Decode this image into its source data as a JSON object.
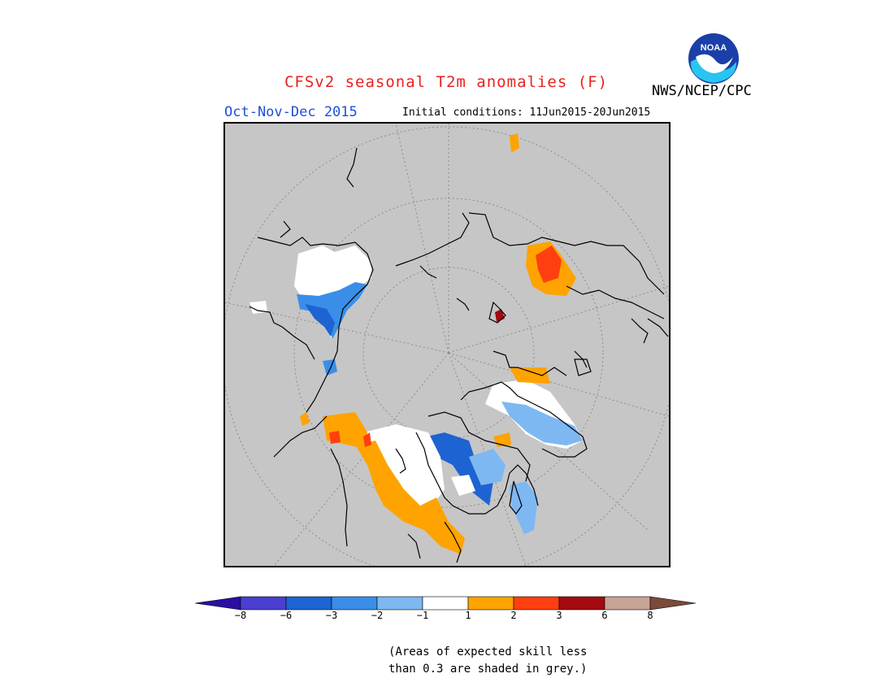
{
  "title": "CFSv2 seasonal T2m anomalies (F)",
  "season": "Oct-Nov-Dec 2015",
  "initial_conditions": "Initial conditions: 11Jun2015-20Jun2015",
  "agency": "NWS/NCEP/CPC",
  "logo_text": "NOAA",
  "colors": {
    "title": "#e8231f",
    "season": "#1f4fd8",
    "map_background": "#c6c6c6"
  },
  "legend": {
    "colors": [
      "#2a0fa0",
      "#4a3fd0",
      "#1e63d2",
      "#3a8ee8",
      "#7eb8f2",
      "#ffffff",
      "#ffa300",
      "#ff3f10",
      "#a30a10",
      "#c8a496",
      "#7a4a3a"
    ],
    "tick_labels": [
      "−8",
      "−6",
      "−3",
      "−2",
      "−1",
      "1",
      "2",
      "3",
      "6",
      "8"
    ]
  },
  "note_lines": [
    "(Areas of expected skill less",
    "than 0.3 are shaded in grey.)"
  ]
}
